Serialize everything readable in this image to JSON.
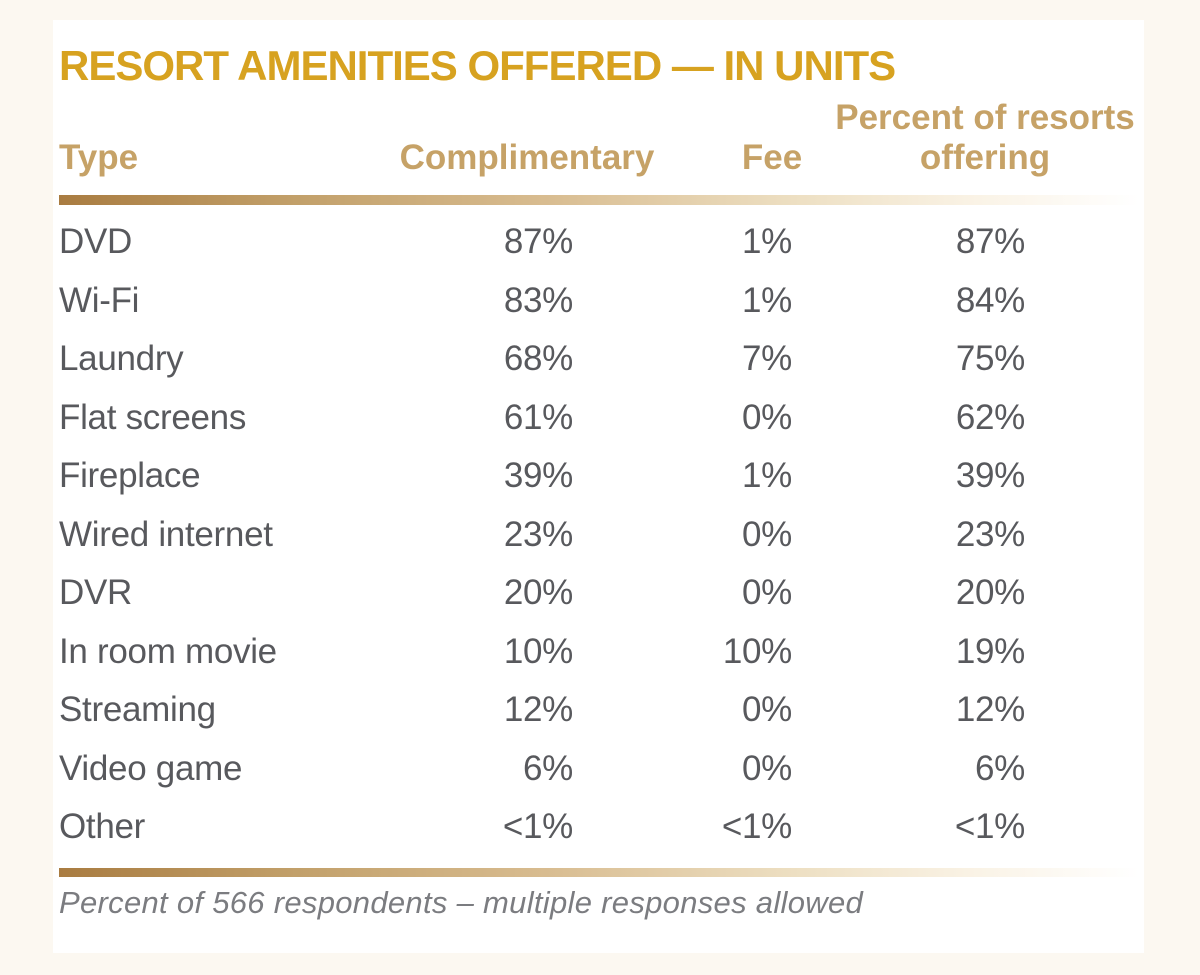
{
  "title": "RESORT AMENITIES OFFERED — IN UNITS",
  "header": {
    "type": "Type",
    "complimentary": "Complimentary",
    "fee": "Fee",
    "offering_line1": "Percent of resorts",
    "offering_line2": "offering"
  },
  "rows": [
    [
      "DVD",
      "87%",
      "1%",
      "87%"
    ],
    [
      "Wi-Fi",
      "83%",
      "1%",
      "84%"
    ],
    [
      "Laundry",
      "68%",
      "7%",
      "75%"
    ],
    [
      "Flat screens",
      "61%",
      "0%",
      "62%"
    ],
    [
      "Fireplace",
      "39%",
      "1%",
      "39%"
    ],
    [
      "Wired internet",
      "23%",
      "0%",
      "23%"
    ],
    [
      "DVR",
      "20%",
      "0%",
      "20%"
    ],
    [
      "In room movie",
      "10%",
      "10%",
      "19%"
    ],
    [
      "Streaming",
      "12%",
      "0%",
      "12%"
    ],
    [
      "Video game",
      "6%",
      "0%",
      "6%"
    ],
    [
      "Other",
      "<1%",
      "<1%",
      "<1%"
    ]
  ],
  "footnote": "Percent of 566 respondents – multiple responses allowed",
  "colors": {
    "title_gold": "#D7A220",
    "header_tan": "#C6A267",
    "body_text": "#58595D",
    "footnote_gray": "#7B7C80",
    "rule_gold_dark": "#A97C41",
    "page_background": "#FCF8F1",
    "card_background": "#FFFFFF"
  },
  "chart_data": {
    "type": "table",
    "title": "RESORT AMENITIES OFFERED — IN UNITS",
    "columns": [
      "Type",
      "Complimentary",
      "Fee",
      "Percent of resorts offering"
    ],
    "rows": [
      [
        "DVD",
        "87%",
        "1%",
        "87%"
      ],
      [
        "Wi-Fi",
        "83%",
        "1%",
        "84%"
      ],
      [
        "Laundry",
        "68%",
        "7%",
        "75%"
      ],
      [
        "Flat screens",
        "61%",
        "0%",
        "62%"
      ],
      [
        "Fireplace",
        "39%",
        "1%",
        "39%"
      ],
      [
        "Wired internet",
        "23%",
        "0%",
        "23%"
      ],
      [
        "DVR",
        "20%",
        "0%",
        "20%"
      ],
      [
        "In room movie",
        "10%",
        "10%",
        "19%"
      ],
      [
        "Streaming",
        "12%",
        "0%",
        "12%"
      ],
      [
        "Video game",
        "6%",
        "0%",
        "6%"
      ],
      [
        "Other",
        "<1%",
        "<1%",
        "<1%"
      ]
    ],
    "footnote": "Percent of 566 respondents – multiple responses allowed",
    "layout_hints": {
      "numeric_columns_alignment": "right",
      "header_alignment": "center",
      "grid": "off",
      "dividers": "gold gradient rules above and below data rows"
    }
  }
}
